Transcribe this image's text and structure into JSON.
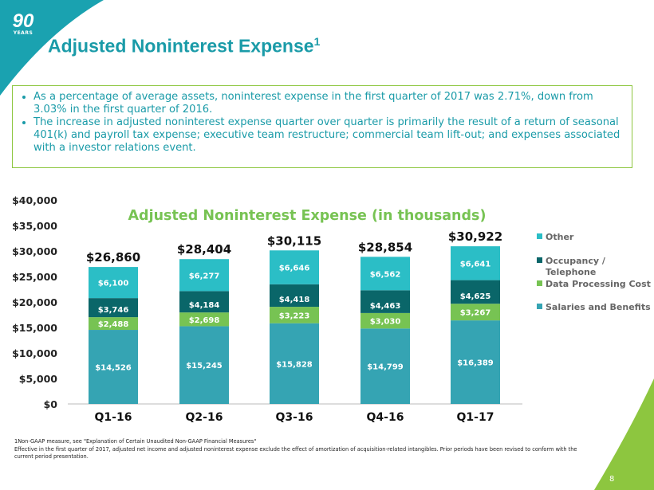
{
  "header": {
    "title": "Adjusted Noninterest Expense",
    "title_sup": "1",
    "logo_number": "90",
    "logo_sub": "YEARS"
  },
  "bullets": [
    "As a percentage of average assets, noninterest expense in the first quarter of 2017 was 2.71%, down from 3.03% in the first quarter of 2016.",
    "The increase in adjusted noninterest expense quarter over quarter is primarily the result of a return of seasonal 401(k) and payroll tax expense; executive team restructure; commercial team lift-out; and expenses associated with a investor relations event."
  ],
  "footnote": {
    "line1": "1Non-GAAP measure, see \"Explanation  of Certain Unaudited  Non-GAAP Financial  Measures\"",
    "line2": "Effective in the first quarter of 2017, adjusted net income and adjusted noninterest expense exclude the effect of amortization  of acquisition-related  intangibles.  Prior periods have been revised to conform with the current period presentation."
  },
  "page_number": "8",
  "chart_data": {
    "type": "bar",
    "stacked": true,
    "title": "Adjusted Noninterest Expense  (in thousands)",
    "categories": [
      "Q1-16",
      "Q2-16",
      "Q3-16",
      "Q4-16",
      "Q1-17"
    ],
    "ylim": [
      0,
      40000
    ],
    "yticks": [
      "$0",
      "$5,000",
      "$10,000",
      "$15,000",
      "$20,000",
      "$25,000",
      "$30,000",
      "$35,000",
      "$40,000"
    ],
    "totals": [
      "$26,860",
      "$28,404",
      "$30,115",
      "$28,854",
      "$30,922"
    ],
    "legend_position": "right",
    "series": [
      {
        "name": "Salaries and Benefits",
        "color": "#35a4b3",
        "values": [
          14526,
          15245,
          15828,
          14799,
          16389
        ],
        "labels": [
          "$14,526",
          "$15,245",
          "$15,828",
          "$14,799",
          "$16,389"
        ]
      },
      {
        "name": "Data Processing Cost",
        "color": "#77c353",
        "values": [
          2488,
          2698,
          3223,
          3030,
          3267
        ],
        "labels": [
          "$2,488",
          "$2,698",
          "$3,223",
          "$3,030",
          "$3,267"
        ]
      },
      {
        "name": "Occupancy / Telephone",
        "color": "#0a6669",
        "values": [
          3746,
          4184,
          4418,
          4463,
          4625
        ],
        "labels": [
          "$3,746",
          "$4,184",
          "$4,418",
          "$4,463",
          "$4,625"
        ]
      },
      {
        "name": "Other",
        "color": "#2bbec6",
        "values": [
          6100,
          6277,
          6646,
          6562,
          6641
        ],
        "labels": [
          "$6,100",
          "$6,277",
          "$6,646",
          "$6,562",
          "$6,641"
        ]
      }
    ]
  }
}
